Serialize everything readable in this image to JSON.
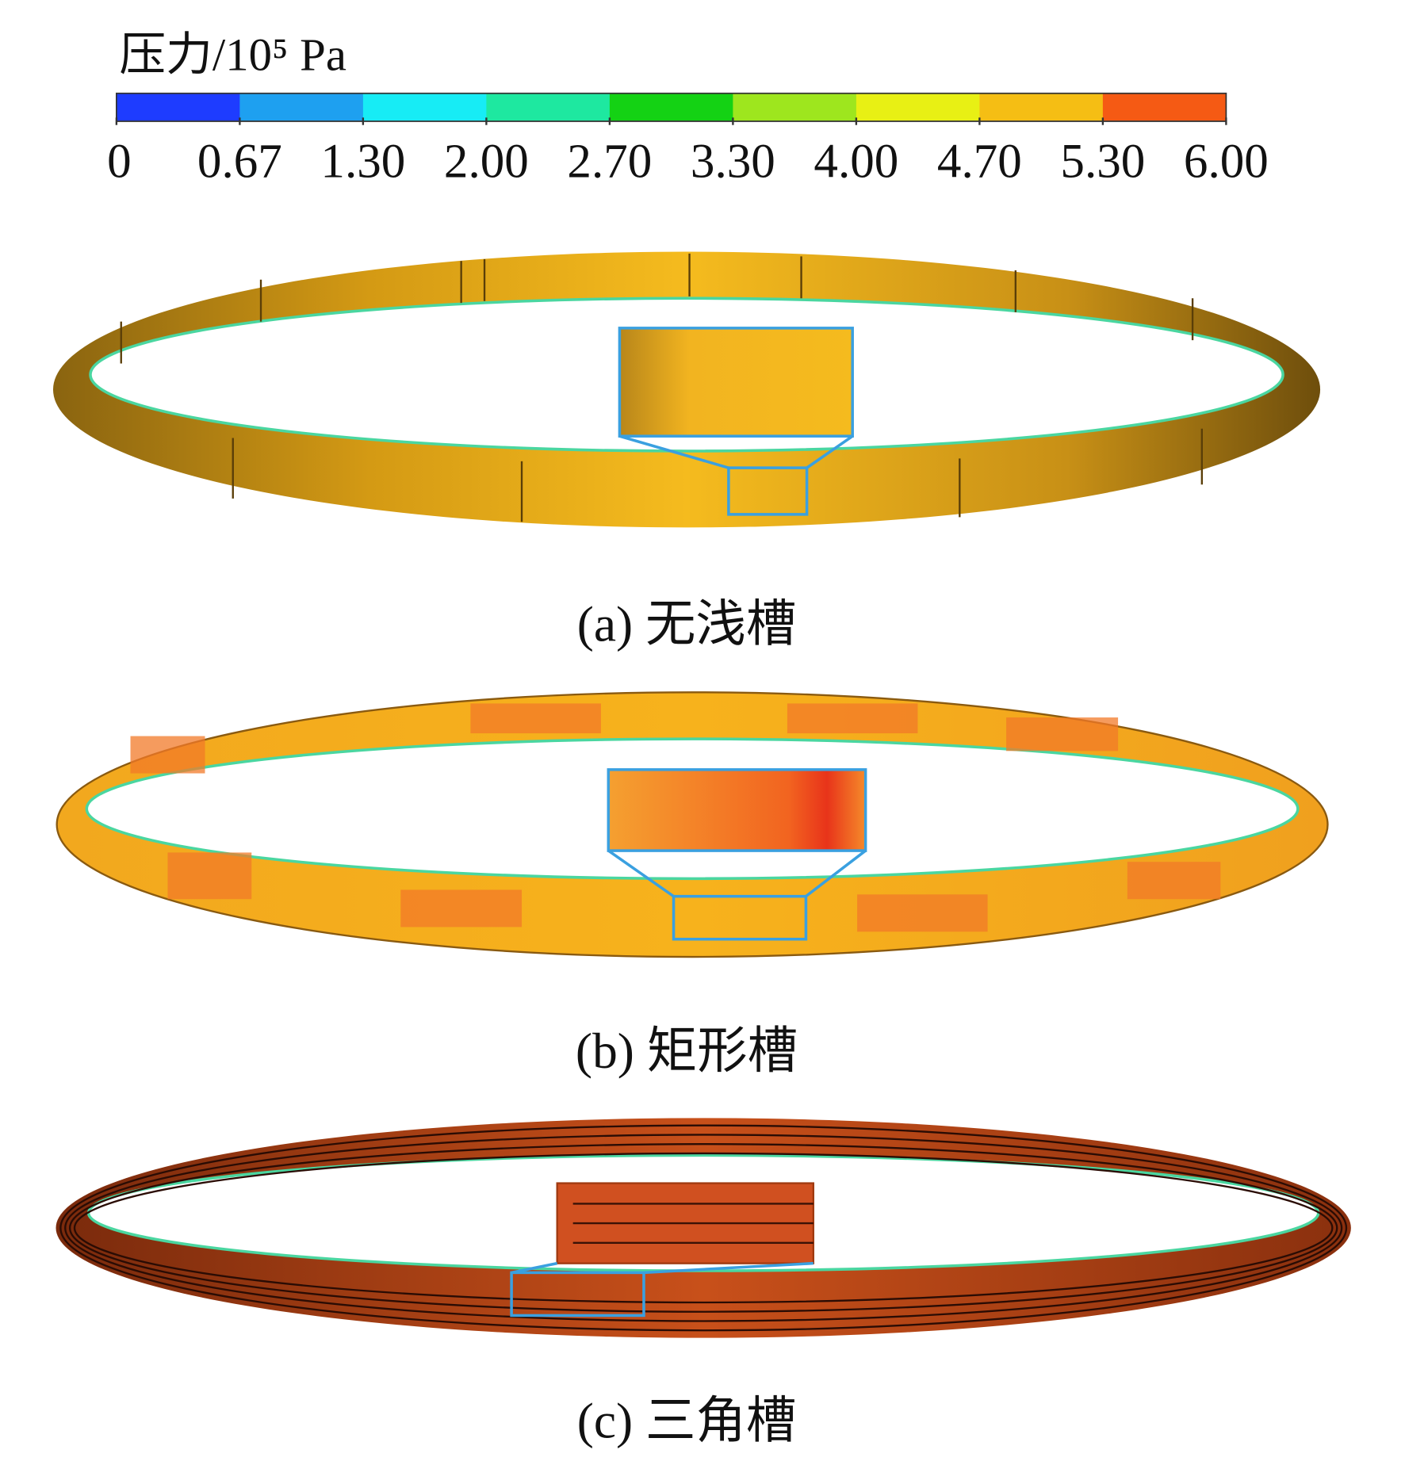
{
  "colorbar": {
    "title": "压力/10⁵ Pa",
    "tick_labels": [
      "0",
      "0.67",
      "1.30",
      "2.00",
      "2.70",
      "3.30",
      "4.00",
      "4.70",
      "5.30",
      "6.00"
    ],
    "colors": [
      "#1e3cff",
      "#1ea0f0",
      "#17ecf5",
      "#1ee8a0",
      "#14d214",
      "#9ee61e",
      "#e8f014",
      "#f5be14",
      "#f55a14"
    ]
  },
  "panels": [
    {
      "caption": "(a) 无浅槽"
    },
    {
      "caption": "(b) 矩形槽"
    },
    {
      "caption": "(c) 三角槽"
    }
  ]
}
